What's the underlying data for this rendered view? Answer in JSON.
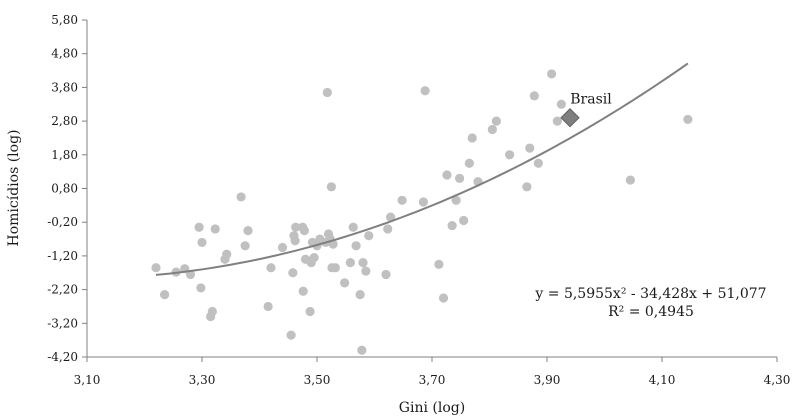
{
  "chart_data": {
    "type": "scatter",
    "xlabel": "Gini (log)",
    "ylabel": "Homicídios (log)",
    "xlim": [
      3.1,
      4.3
    ],
    "ylim": [
      -4.2,
      5.8
    ],
    "x_ticks": [
      "3,10",
      "3,30",
      "3,50",
      "3,70",
      "3,90",
      "4,10",
      "4,30"
    ],
    "y_ticks": [
      "5,80",
      "4,80",
      "3,80",
      "2,80",
      "1,80",
      "0,80",
      "-0,20",
      "-1,20",
      "-2,20",
      "-3,20",
      "-4,20"
    ],
    "grid": false,
    "point_color": "#c0c0c0",
    "trend_color": "#808080",
    "highlight_color": "#7f7f7f",
    "points": [
      [
        3.22,
        -1.55
      ],
      [
        3.235,
        -2.35
      ],
      [
        3.255,
        -1.68
      ],
      [
        3.27,
        -1.58
      ],
      [
        3.28,
        -1.75
      ],
      [
        3.295,
        -0.35
      ],
      [
        3.298,
        -2.15
      ],
      [
        3.3,
        -0.8
      ],
      [
        3.315,
        -3.0
      ],
      [
        3.318,
        -2.85
      ],
      [
        3.323,
        -0.4
      ],
      [
        3.34,
        -1.3
      ],
      [
        3.343,
        -1.15
      ],
      [
        3.368,
        0.55
      ],
      [
        3.375,
        -0.9
      ],
      [
        3.38,
        -0.45
      ],
      [
        3.415,
        -2.7
      ],
      [
        3.42,
        -1.55
      ],
      [
        3.44,
        -0.95
      ],
      [
        3.455,
        -3.55
      ],
      [
        3.458,
        -1.7
      ],
      [
        3.46,
        -0.6
      ],
      [
        3.462,
        -0.75
      ],
      [
        3.463,
        -0.35
      ],
      [
        3.475,
        -0.35
      ],
      [
        3.478,
        -0.45
      ],
      [
        3.476,
        -2.25
      ],
      [
        3.48,
        -1.3
      ],
      [
        3.488,
        -2.85
      ],
      [
        3.49,
        -1.4
      ],
      [
        3.492,
        -0.8
      ],
      [
        3.495,
        -1.25
      ],
      [
        3.5,
        -0.9
      ],
      [
        3.505,
        -0.7
      ],
      [
        3.515,
        -0.8
      ],
      [
        3.518,
        3.65
      ],
      [
        3.52,
        -0.55
      ],
      [
        3.523,
        -0.7
      ],
      [
        3.525,
        0.85
      ],
      [
        3.526,
        -1.55
      ],
      [
        3.528,
        -0.85
      ],
      [
        3.532,
        -1.55
      ],
      [
        3.548,
        -2.0
      ],
      [
        3.558,
        -1.4
      ],
      [
        3.563,
        -0.35
      ],
      [
        3.568,
        -0.9
      ],
      [
        3.575,
        -2.35
      ],
      [
        3.578,
        -4.0
      ],
      [
        3.58,
        -1.4
      ],
      [
        3.585,
        -1.65
      ],
      [
        3.59,
        -0.6
      ],
      [
        3.62,
        -1.75
      ],
      [
        3.623,
        -0.4
      ],
      [
        3.628,
        -0.05
      ],
      [
        3.648,
        0.45
      ],
      [
        3.685,
        0.4
      ],
      [
        3.688,
        3.7
      ],
      [
        3.712,
        -1.45
      ],
      [
        3.72,
        -2.45
      ],
      [
        3.726,
        1.2
      ],
      [
        3.735,
        -0.3
      ],
      [
        3.742,
        0.45
      ],
      [
        3.748,
        1.1
      ],
      [
        3.755,
        -0.15
      ],
      [
        3.765,
        1.55
      ],
      [
        3.77,
        2.3
      ],
      [
        3.78,
        1.0
      ],
      [
        3.805,
        2.55
      ],
      [
        3.812,
        2.8
      ],
      [
        3.835,
        1.8
      ],
      [
        3.865,
        0.85
      ],
      [
        3.87,
        2.0
      ],
      [
        3.878,
        3.55
      ],
      [
        3.885,
        1.55
      ],
      [
        3.908,
        4.2
      ],
      [
        3.918,
        2.8
      ],
      [
        3.925,
        3.3
      ],
      [
        4.045,
        1.05
      ],
      [
        4.145,
        2.85
      ]
    ],
    "highlight": {
      "label": "Brasil",
      "x": 3.94,
      "y": 2.9
    },
    "trendline": {
      "type": "polynomial",
      "coefficients": [
        5.5955,
        -34.428,
        51.077
      ],
      "x_range": [
        3.22,
        4.145
      ]
    },
    "equation_text": "y = 5,5955x² - 34,428x + 51,077",
    "r2_text": "R² = 0,4945"
  }
}
